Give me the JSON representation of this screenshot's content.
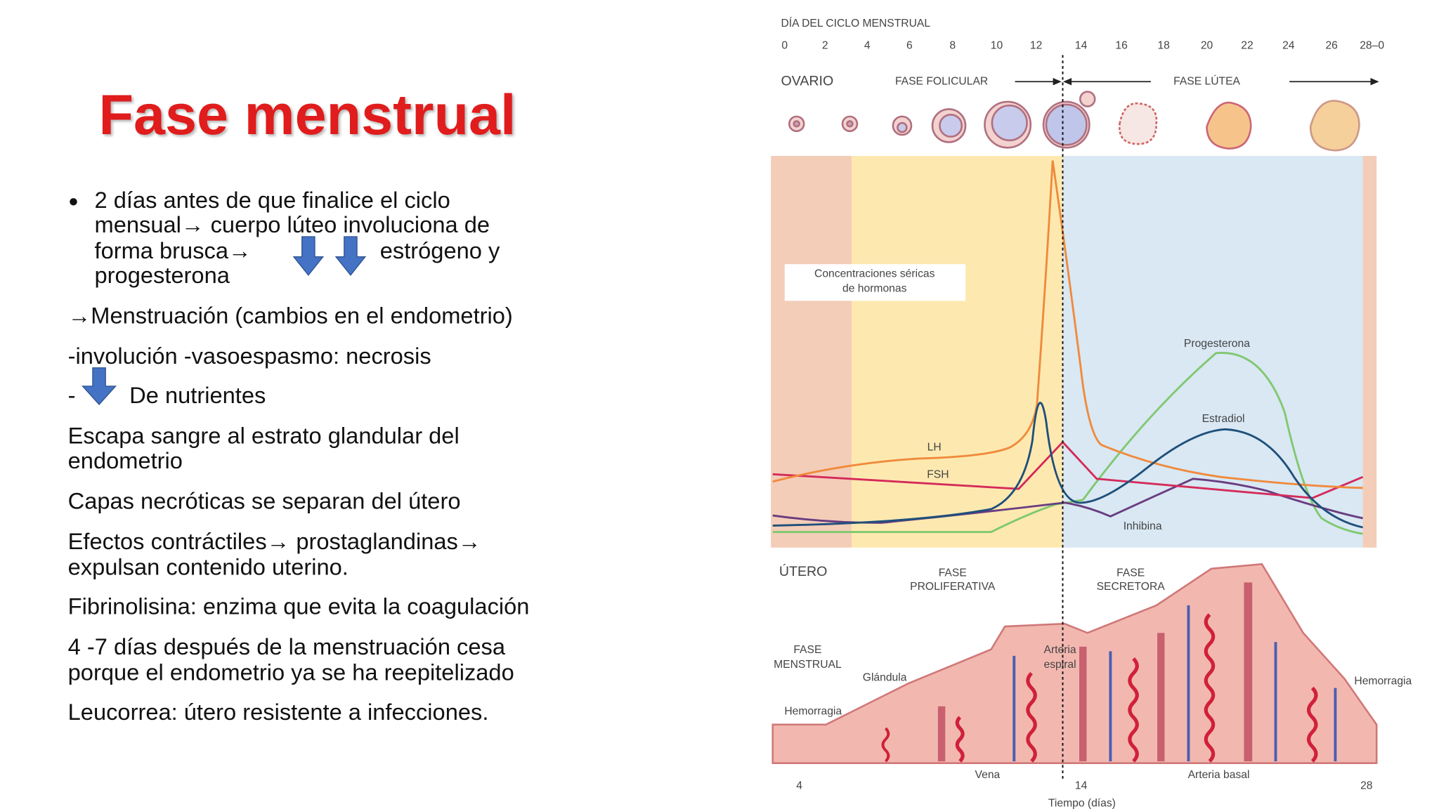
{
  "title": "Fase menstrual",
  "body": [
    "2 días antes de que finalice el ciclo",
    "mensual→ cuerpo lúteo involuciona de",
    "forma brusca→",
    "estrógeno y",
    "progesterona",
    "→Menstruación (cambios en el endometrio)",
    "-involución -vasoespasmo: necrosis",
    "-",
    "De nutrientes",
    "Escapa sangre al estrato glandular del",
    "endometrio",
    "Capas necróticas se separan del útero",
    "Efectos contráctiles→ prostaglandinas→",
    "expulsan contenido uterino.",
    "Fibrinolisina: enzima que evita la coagulación",
    "4 -7 días después de la menstruación cesa",
    "porque el endometrio ya se ha reepitelizado",
    "Leucorrea: útero resistente a infecciones."
  ],
  "figure": {
    "axis_title": "DÍA DEL CICLO MENSTRUAL",
    "days": [
      "0",
      "2",
      "4",
      "6",
      "8",
      "10",
      "12",
      "14",
      "16",
      "18",
      "20",
      "22",
      "24",
      "26",
      "28–0"
    ],
    "ovary": {
      "label": "OVARIO",
      "follicular": "FASE FOLICULAR",
      "luteal": "FASE LÚTEA"
    },
    "box": [
      "Concentraciones séricas",
      "de hormonas"
    ],
    "hormones": {
      "lh": "LH",
      "fsh": "FSH",
      "progesterone": "Progesterona",
      "estradiol": "Estradiol",
      "inhibin": "Inhibina"
    },
    "uterus": {
      "label": "ÚTERO",
      "proliferative": [
        "FASE",
        "PROLIFERATIVA"
      ],
      "secretory": [
        "FASE",
        "SECRETORA"
      ],
      "menstrual": [
        "FASE",
        "MENSTRUAL"
      ],
      "gland": "Glándula",
      "spiral_artery": [
        "Arteria",
        "espiral"
      ],
      "hemorrhage_left": "Hemorragia",
      "hemorrhage_right": "Hemorragia",
      "vein": "Vena",
      "basal_artery": "Arteria basal"
    },
    "time_ticks": [
      "4",
      "14",
      "28"
    ],
    "time_title": "Tiempo (días)"
  }
}
